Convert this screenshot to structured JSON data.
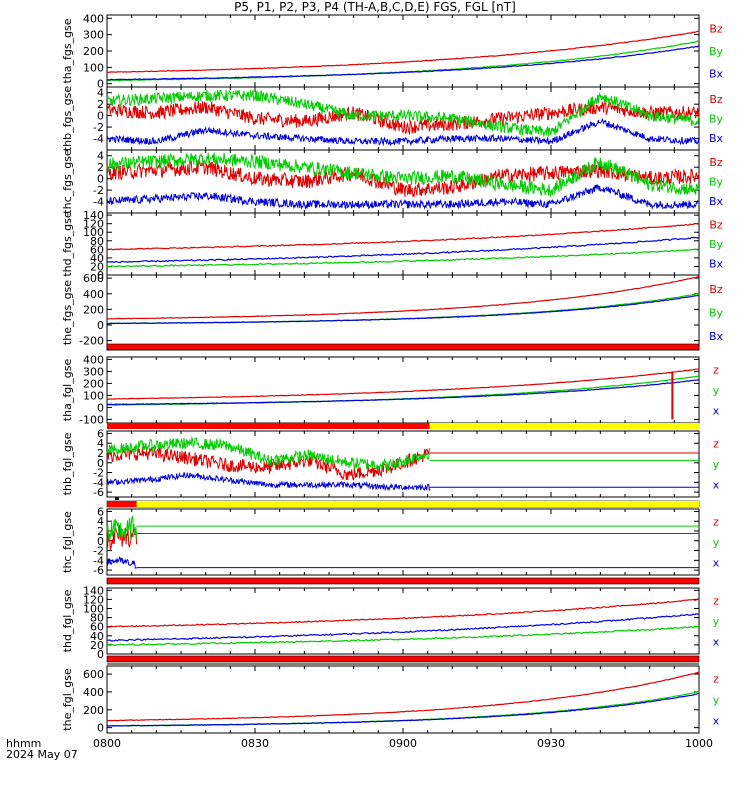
{
  "header": {
    "title": "P5, P1, P2, P3, P4 (TH-A,B,C,D,E) FGS, FGL [nT]",
    "time_label": "hhmm",
    "date_label": "2024 May 07"
  },
  "colors": {
    "x": "#0000d8",
    "y": "#00cc00",
    "z": "#e00000",
    "bar_red": "#ff0000",
    "bar_yellow": "#ffff00",
    "bar_black": "#000000"
  },
  "chart_data": {
    "type": "line",
    "x_ticks": [
      "0800",
      "0830",
      "0900",
      "0930",
      "1000"
    ],
    "x_range": [
      "08:00",
      "10:00"
    ],
    "panels": [
      {
        "ylabel": "tha_fgs_gse",
        "yticks": [
          "400",
          "300",
          "200",
          "100",
          "0"
        ],
        "ylim": [
          -20,
          420
        ],
        "legend": [
          "Bz",
          "By",
          "Bx"
        ],
        "style": "smooth",
        "series": [
          {
            "name": "Bz",
            "color": "z",
            "start": 70,
            "end": 320,
            "curve": 2.2,
            "noise": 2
          },
          {
            "name": "By",
            "color": "y",
            "start": 20,
            "end": 260,
            "curve": 2.6,
            "noise": 2
          },
          {
            "name": "Bx",
            "color": "x",
            "start": 25,
            "end": 230,
            "curve": 2.6,
            "noise": 2
          }
        ]
      },
      {
        "ylabel": "thb_fgs_gse",
        "yticks": [
          "4",
          "2",
          "0",
          "-2",
          "-4"
        ],
        "ylim": [
          -6,
          5
        ],
        "legend": [
          "Bz",
          "By",
          "Bx"
        ],
        "style": "noisy",
        "series": [
          {
            "name": "Bz",
            "color": "z",
            "knots": [
              1,
              0.5,
              1.5,
              -0.5,
              -1,
              0.5,
              -2,
              -1.5,
              -0.5,
              0.5,
              1.5,
              0.5,
              0.5
            ],
            "noise": 1.2
          },
          {
            "name": "By",
            "color": "y",
            "knots": [
              2.5,
              3,
              3.5,
              3.5,
              2,
              0,
              0,
              -0.5,
              -2,
              -3,
              3.5,
              0,
              -1
            ],
            "noise": 1.0
          },
          {
            "name": "Bx",
            "color": "x",
            "knots": [
              -4,
              -4.5,
              -2.5,
              -3.5,
              -4,
              -4.5,
              -4.5,
              -4,
              -4,
              -4.5,
              -1,
              -4,
              -4.5
            ],
            "noise": 0.6
          }
        ]
      },
      {
        "ylabel": "thc_fgs_gse",
        "yticks": [
          "4",
          "2",
          "0",
          "-2",
          "-4"
        ],
        "ylim": [
          -6,
          5
        ],
        "legend": [
          "Bz",
          "By",
          "Bx"
        ],
        "style": "noisy",
        "series": [
          {
            "name": "Bz",
            "color": "z",
            "knots": [
              1,
              1.5,
              2,
              0,
              -0.5,
              1,
              -2,
              -1.5,
              0.5,
              1,
              1.5,
              0,
              0.5
            ],
            "noise": 1.3
          },
          {
            "name": "By",
            "color": "y",
            "knots": [
              2.5,
              3,
              3.5,
              3,
              2,
              1,
              0,
              0.5,
              -1,
              -2,
              3,
              -1,
              -2
            ],
            "noise": 1.2
          },
          {
            "name": "Bx",
            "color": "x",
            "knots": [
              -4,
              -3.5,
              -3,
              -4,
              -4.5,
              -4.5,
              -4.5,
              -4.5,
              -4,
              -4.5,
              -1.5,
              -4.5,
              -4.5
            ],
            "noise": 0.7
          }
        ]
      },
      {
        "ylabel": "thd_fgs_gse",
        "yticks": [
          "140",
          "120",
          "100",
          "80",
          "60",
          "40",
          "20",
          "0"
        ],
        "ylim": [
          0,
          145
        ],
        "legend": [
          "Bz",
          "By",
          "Bx"
        ],
        "style": "smooth",
        "series": [
          {
            "name": "Bz",
            "color": "z",
            "start": 60,
            "end": 120,
            "curve": 1.6,
            "noise": 1.2
          },
          {
            "name": "By",
            "color": "y",
            "start": 20,
            "end": 60,
            "curve": 1.6,
            "noise": 1.5
          },
          {
            "name": "Bx",
            "color": "x",
            "start": 30,
            "end": 88,
            "curve": 1.5,
            "noise": 1.5
          }
        ]
      },
      {
        "ylabel": "the_fgs_gse",
        "yticks": [
          "600",
          "400",
          "200",
          "0",
          "-200"
        ],
        "ylim": [
          -320,
          640
        ],
        "legend": [
          "Bz",
          "By",
          "Bx"
        ],
        "style": "smooth",
        "series": [
          {
            "name": "Bz",
            "color": "z",
            "start": 80,
            "end": 620,
            "curve": 3.0,
            "noise": 3
          },
          {
            "name": "By",
            "color": "y",
            "start": 20,
            "end": 400,
            "curve": 3.3,
            "noise": 3
          },
          {
            "name": "Bx",
            "color": "x",
            "start": 20,
            "end": 380,
            "curve": 3.3,
            "noise": 3
          }
        ]
      },
      {
        "ylabel": "tha_fgl_gse",
        "yticks": [
          "400",
          "300",
          "200",
          "100",
          "0",
          "-100"
        ],
        "ylim": [
          -130,
          420
        ],
        "legend": [
          "z",
          "y",
          "x"
        ],
        "style": "smooth",
        "bar": "red",
        "spike": 0.955,
        "series": [
          {
            "name": "z",
            "color": "z",
            "start": 70,
            "end": 320,
            "curve": 2.2,
            "noise": 2
          },
          {
            "name": "y",
            "color": "y",
            "start": 20,
            "end": 260,
            "curve": 2.6,
            "noise": 2
          },
          {
            "name": "x",
            "color": "x",
            "start": 25,
            "end": 230,
            "curve": 2.6,
            "noise": 2
          }
        ]
      },
      {
        "ylabel": "thb_fgl_gse",
        "yticks": [
          "6",
          "4",
          "2",
          "0",
          "-2",
          "-4",
          "-6"
        ],
        "ylim": [
          -7,
          6.5
        ],
        "legend": [
          "z",
          "y",
          "x"
        ],
        "style": "noisy",
        "bar": "red_yellow",
        "bar_split": 0.545,
        "cut": 0.545,
        "flat": {
          "z": 2,
          "y": 0.5,
          "x": -5
        },
        "series": [
          {
            "name": "z",
            "color": "z",
            "knots": [
              1.5,
              2,
              1,
              -0.5,
              -1,
              0.5,
              -2.5,
              -1,
              2
            ],
            "noise": 1.4
          },
          {
            "name": "y",
            "color": "y",
            "knots": [
              2.5,
              3.5,
              4,
              3.5,
              0.5,
              1.5,
              0,
              -0.5,
              2
            ],
            "noise": 1.2
          },
          {
            "name": "x",
            "color": "x",
            "knots": [
              -4,
              -3.5,
              -2.5,
              -3.5,
              -4.5,
              -4.5,
              -4.5,
              -5,
              -5
            ],
            "noise": 0.6
          }
        ]
      },
      {
        "ylabel": "thc_fgl_gse",
        "yticks": [
          "6",
          "4",
          "2",
          "0",
          "-2",
          "-4",
          "-6"
        ],
        "ylim": [
          -7,
          6.5
        ],
        "legend": [
          "z",
          "y",
          "x"
        ],
        "style": "noisy",
        "bar": "red_full",
        "cut": 0.05,
        "pre_bar": 0.05,
        "flat": {
          "z": 1.5,
          "y": 3,
          "x": -5.5
        },
        "series": [
          {
            "name": "z",
            "color": "z",
            "knots": [
              0.5,
              1,
              1,
              1
            ],
            "noise": 2.5
          },
          {
            "name": "y",
            "color": "y",
            "knots": [
              1.5,
              2,
              2,
              3
            ],
            "noise": 2.5
          },
          {
            "name": "x",
            "color": "x",
            "knots": [
              -4.5,
              -4,
              -4.5,
              -5
            ],
            "noise": 0.8
          }
        ]
      },
      {
        "ylabel": "thd_fgl_gse",
        "yticks": [
          "140",
          "120",
          "100",
          "80",
          "60",
          "40",
          "20",
          "0"
        ],
        "ylim": [
          0,
          145
        ],
        "legend": [
          "z",
          "y",
          "x"
        ],
        "style": "smooth",
        "bar": "red",
        "series": [
          {
            "name": "z",
            "color": "z",
            "start": 60,
            "end": 120,
            "curve": 1.6,
            "noise": 1.2
          },
          {
            "name": "y",
            "color": "y",
            "start": 20,
            "end": 60,
            "curve": 1.6,
            "noise": 1.5
          },
          {
            "name": "x",
            "color": "x",
            "start": 30,
            "end": 88,
            "curve": 1.5,
            "noise": 1.5
          }
        ]
      },
      {
        "ylabel": "the_fgl_gse",
        "yticks": [
          "600",
          "400",
          "200",
          "0"
        ],
        "ylim": [
          -60,
          690
        ],
        "legend": [
          "z",
          "y",
          "x"
        ],
        "style": "smooth",
        "bar": "red",
        "series": [
          {
            "name": "z",
            "color": "z",
            "start": 80,
            "end": 620,
            "curve": 3.0,
            "noise": 3
          },
          {
            "name": "y",
            "color": "y",
            "start": 20,
            "end": 400,
            "curve": 3.3,
            "noise": 3
          },
          {
            "name": "x",
            "color": "x",
            "start": 20,
            "end": 380,
            "curve": 3.3,
            "noise": 3
          }
        ]
      }
    ]
  }
}
